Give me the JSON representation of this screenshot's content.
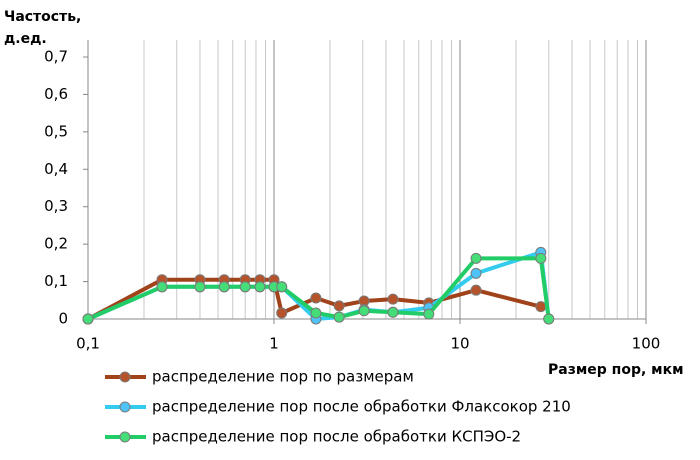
{
  "chart_data": {
    "type": "line",
    "ylabel": "Частость, д.ед.",
    "xlabel": "Размер пор, мкм",
    "x": [
      0.1,
      0.25,
      0.4,
      0.54,
      0.7,
      0.84,
      1.0,
      1.1,
      1.68,
      2.24,
      3.05,
      4.36,
      6.8,
      12.2,
      27.2,
      30
    ],
    "series": [
      {
        "name": "распределение пор по размерам",
        "color": "#a0421a",
        "marker": "#b5532a",
        "values": [
          0,
          0.105,
          0.105,
          0.105,
          0.105,
          0.105,
          0.105,
          0.016,
          0.056,
          0.035,
          0.048,
          0.053,
          0.043,
          0.077,
          0.033,
          null
        ]
      },
      {
        "name": "распределение пор после обработки Флаксокор 210",
        "color": "#33ccee",
        "marker": "#4fc3f7",
        "values": [
          0,
          0.086,
          0.086,
          0.086,
          0.086,
          0.086,
          0.086,
          0.086,
          0,
          0.005,
          0.025,
          0.018,
          0.03,
          0.122,
          0.178,
          0
        ]
      },
      {
        "name": "распределение пор после обработки КСПЭО-2",
        "color": "#22cc66",
        "marker": "#44dd77",
        "values": [
          0,
          0.086,
          0.086,
          0.086,
          0.086,
          0.086,
          0.086,
          0.086,
          0.016,
          0.005,
          0.022,
          0.018,
          0.013,
          0.162,
          0.162,
          0
        ]
      }
    ],
    "xlim": [
      0.1,
      100
    ],
    "xlog": true,
    "xticks": [
      {
        "value": 0.1,
        "label": "0,1"
      },
      1,
      10,
      100
    ],
    "ylim": [
      0,
      0.7
    ],
    "yticks": [
      0,
      {
        "value": 0.1,
        "label": "0,1"
      },
      {
        "value": 0.2,
        "label": "0,2"
      },
      {
        "value": 0.3,
        "label": "0,3"
      },
      {
        "value": 0.4,
        "label": "0,4"
      },
      {
        "value": 0.5,
        "label": "0,5"
      },
      {
        "value": 0.6,
        "label": "0,6"
      },
      {
        "value": 0.7,
        "label": "0,7"
      }
    ],
    "grid": true,
    "minor_grid": true,
    "legend": "bottom"
  }
}
